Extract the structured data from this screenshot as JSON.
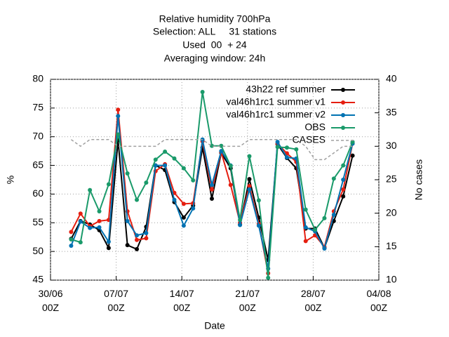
{
  "chart_data": {
    "type": "line",
    "title": [
      "Relative humidity 700hPa",
      "Selection: ALL     31 stations",
      "Used  00  + 24",
      "Averaging window: 24h"
    ],
    "x_label": "Date",
    "y_label": "%",
    "y2_label": "No cases",
    "x": [
      2.2,
      3.2,
      4.2,
      5.2,
      6.2,
      7.2,
      8.2,
      9.2,
      10.2,
      11.2,
      12.2,
      13.2,
      14.2,
      15.2,
      16.2,
      17.2,
      18.2,
      19.2,
      20.2,
      21.2,
      22.2,
      23.2,
      24.2,
      25.2,
      26.2,
      27.2,
      28.2,
      29.2,
      30.2,
      31.2,
      32.2
    ],
    "xlim": [
      0,
      35
    ],
    "xticks": [
      {
        "value": 0,
        "label": "30/06\n00Z"
      },
      {
        "value": 7,
        "label": "07/07\n00Z"
      },
      {
        "value": 14,
        "label": "14/07\n00Z"
      },
      {
        "value": 21,
        "label": "21/07\n00Z"
      },
      {
        "value": 28,
        "label": "28/07\n00Z"
      },
      {
        "value": 35,
        "label": "04/08\n00Z"
      }
    ],
    "ylim": [
      45,
      80
    ],
    "yticks": [
      45,
      50,
      55,
      60,
      65,
      70,
      75,
      80
    ],
    "y2lim": [
      10,
      40
    ],
    "y2ticks": [
      10,
      15,
      20,
      25,
      30,
      35,
      40
    ],
    "grid": true,
    "legend": "top-right",
    "series": [
      {
        "name": "43h22 ref summer",
        "color": "#000000",
        "values": [
          52.2,
          55.3,
          54.7,
          53.7,
          50.6,
          69.4,
          51.1,
          50.4,
          54.3,
          65,
          64.2,
          58.6,
          55.9,
          58,
          68.1,
          59.2,
          67.2,
          64.5,
          54.7,
          62.6,
          55.9,
          48.5,
          68.7,
          66.3,
          64.5,
          54,
          54,
          50.6,
          55.3,
          59.6,
          66.7
        ]
      },
      {
        "name": "val46h1rc1 summer v1",
        "color": "#e51e10",
        "values": [
          53.4,
          56.6,
          54.4,
          55.3,
          55.5,
          74.7,
          57,
          52,
          52.3,
          64,
          65.2,
          60.2,
          58.3,
          58.4,
          69.2,
          60.8,
          67.3,
          61.6,
          55,
          61.4,
          54.8,
          46.2,
          68.8,
          67.1,
          65.6,
          51.8,
          52.8,
          50.8,
          57,
          60.8,
          68.8
        ]
      },
      {
        "name": "val46h1rc1 summer v2",
        "color": "#0072b2",
        "values": [
          51,
          55.2,
          54.1,
          54.2,
          51.7,
          73.6,
          55.3,
          52.8,
          53.2,
          65,
          65,
          59,
          54.5,
          57.5,
          69.5,
          61.6,
          67.5,
          65,
          54.6,
          60.8,
          54.5,
          47,
          69.1,
          66.4,
          66.2,
          54.2,
          53.5,
          50.5,
          56.4,
          62.5,
          68.8
        ]
      },
      {
        "name": "OBS",
        "color": "#1a9a6a",
        "values": [
          52.1,
          51.6,
          60.7,
          57,
          61.7,
          70.4,
          63.6,
          59,
          62,
          66,
          67.4,
          66.2,
          64.5,
          62.4,
          77.8,
          68.4,
          68.4,
          64.9,
          55.5,
          66.6,
          58.9,
          45.4,
          68.2,
          68.1,
          67.8,
          57.3,
          53.8,
          55.8,
          62.7,
          65,
          69.1
        ]
      },
      {
        "name": "CASES",
        "color": "#a0a0a0",
        "axis": "y2",
        "dashed": true,
        "values": [
          31,
          30,
          31,
          31,
          31,
          30,
          30,
          30,
          30,
          30,
          31,
          31,
          31,
          31,
          31,
          30,
          30,
          30,
          30,
          31,
          31,
          31,
          31,
          31,
          31,
          30,
          28,
          28,
          29,
          30,
          30
        ]
      }
    ]
  }
}
